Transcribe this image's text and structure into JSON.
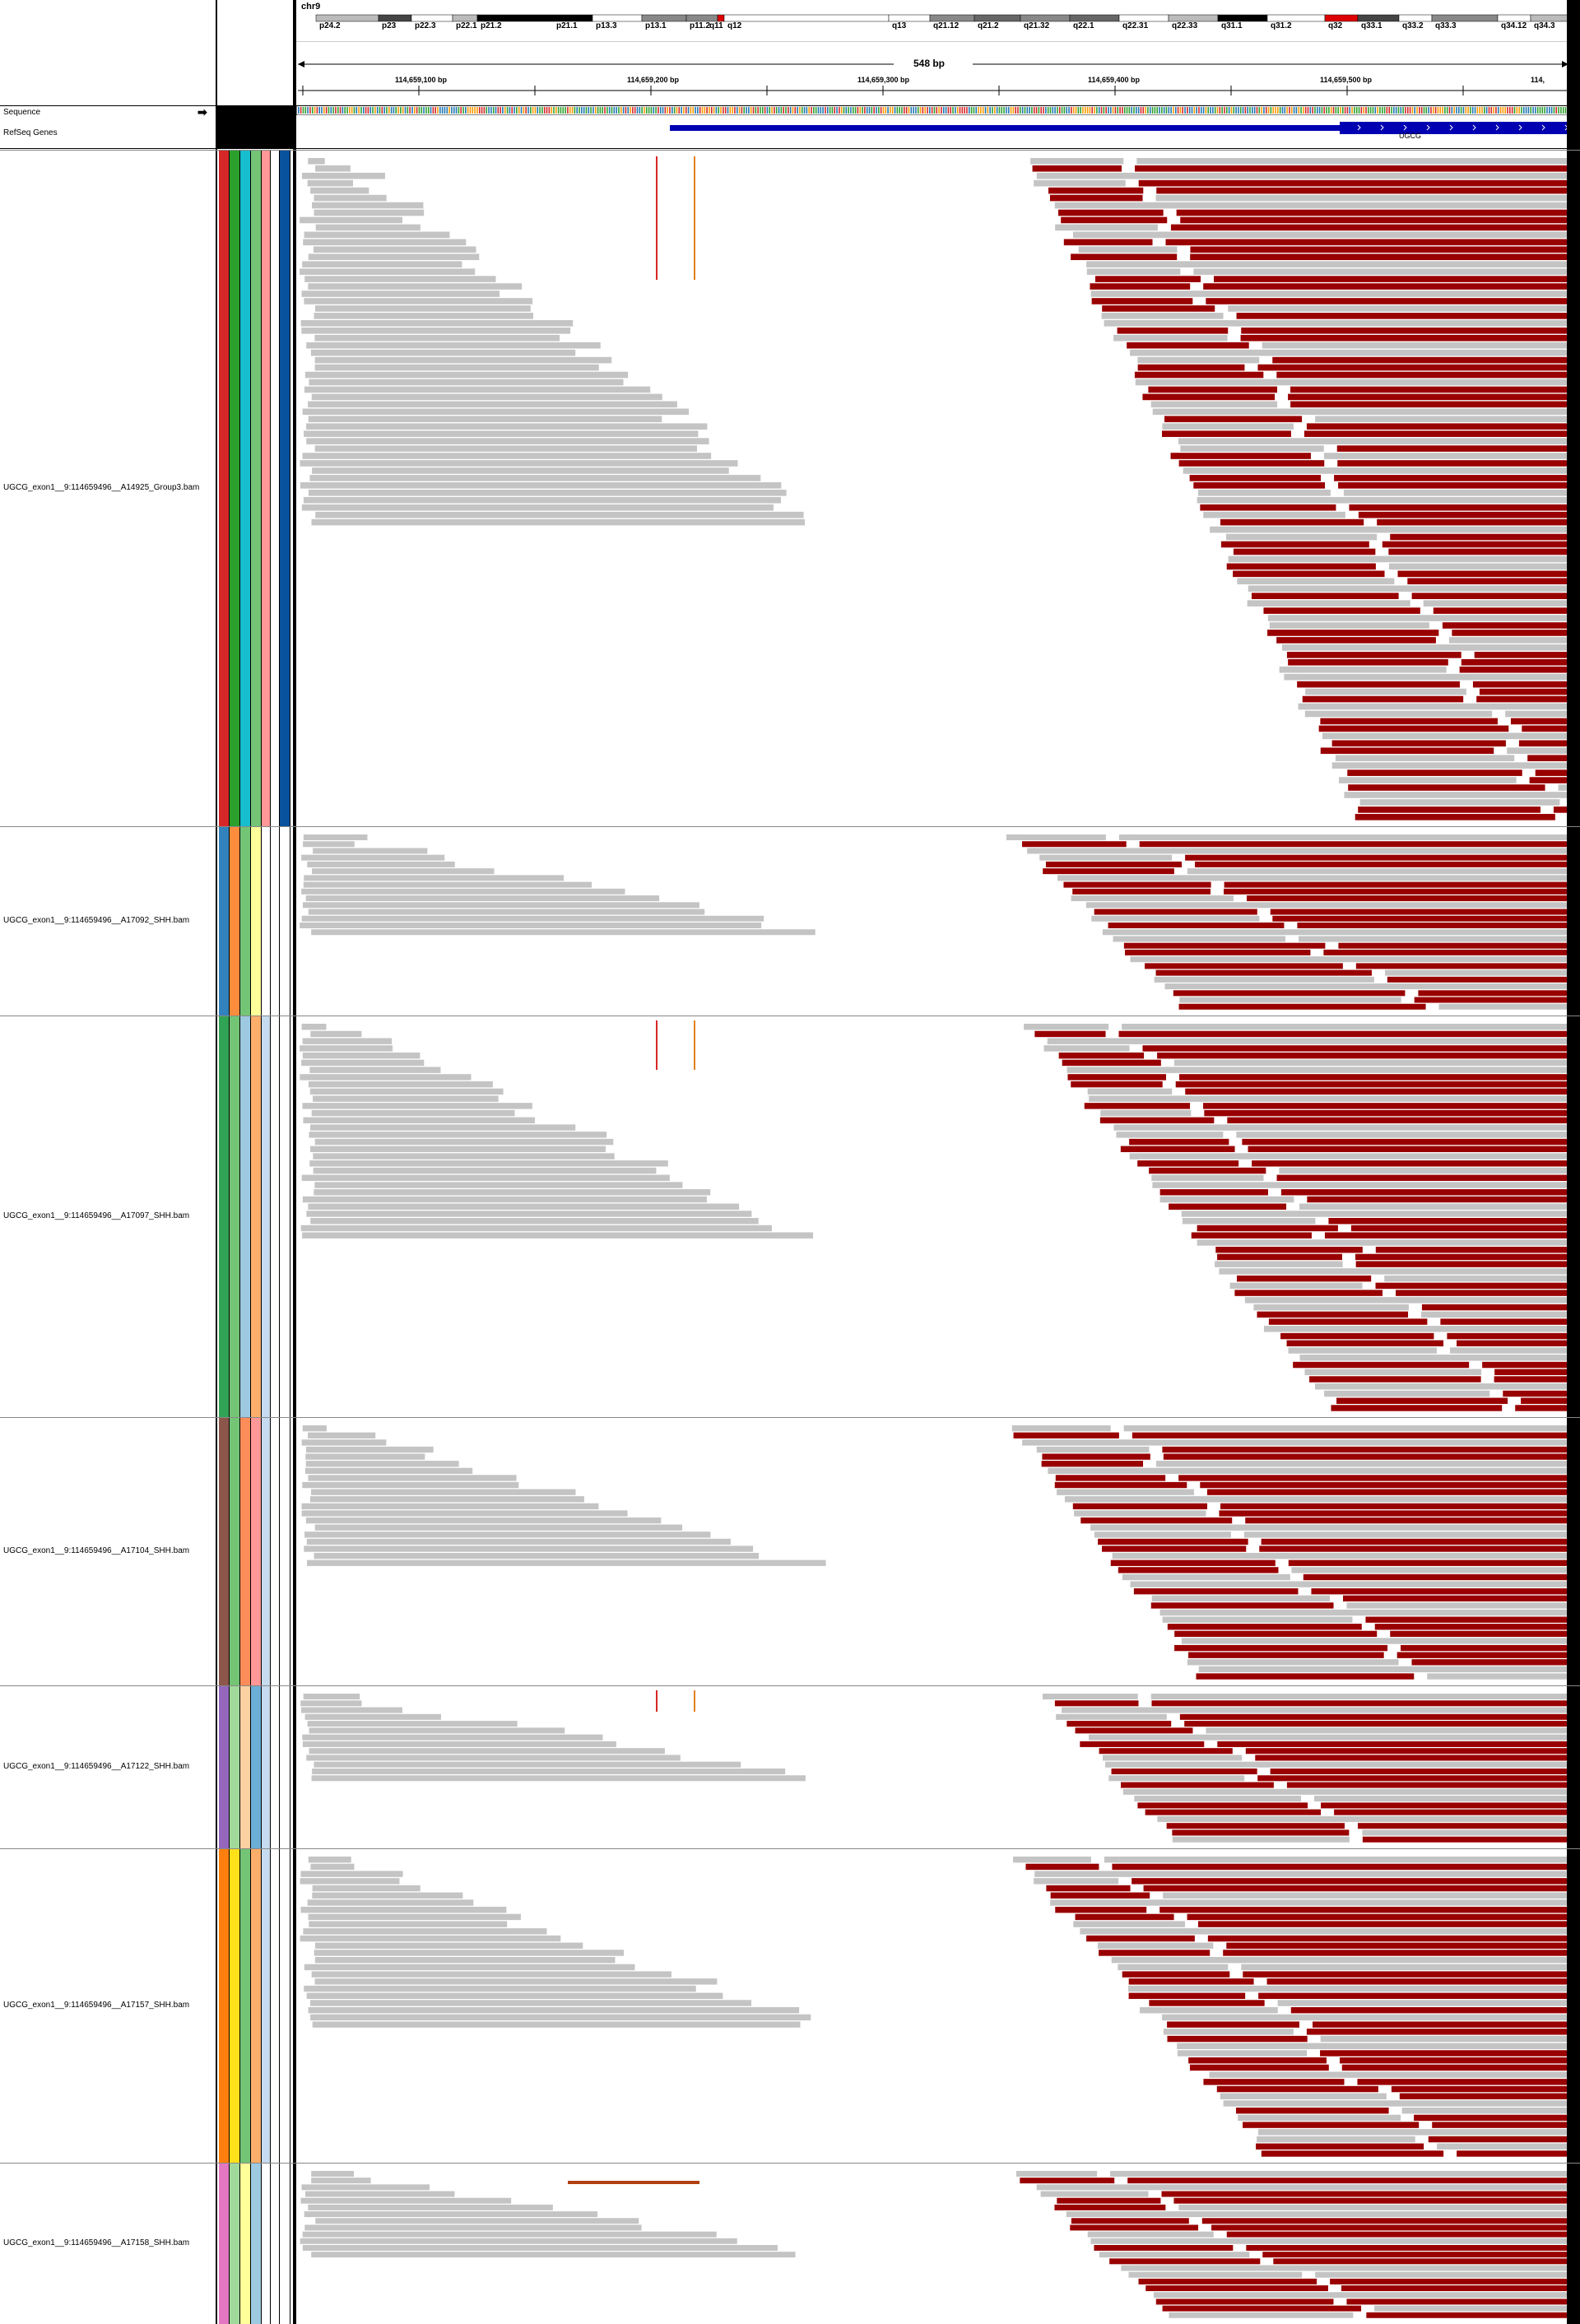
{
  "chromosome": {
    "name": "chr9",
    "bands": [
      "p24.2",
      "p23",
      "p22.3",
      "p22.1",
      "p21.2",
      "p21.1",
      "p13.3",
      "p13.1",
      "p11.2",
      "q11",
      "q12",
      "q13",
      "q21.12",
      "q21.2",
      "q21.32",
      "q22.1",
      "q22.31",
      "q22.33",
      "q31.1",
      "q31.2",
      "q32",
      "q33.1",
      "q33.2",
      "q33.3",
      "q34.12",
      "q34.3"
    ]
  },
  "ruler": {
    "span": "548 bp",
    "ticks": [
      "114,659,100 bp",
      "114,659,200 bp",
      "114,659,300 bp",
      "114,659,400 bp",
      "114,659,500 bp",
      "114,"
    ]
  },
  "tracks": {
    "sequence_label": "Sequence",
    "refseq_label": "RefSeq Genes",
    "gene_name": "UGCG"
  },
  "samples": [
    {
      "name": "UGCG_exon1__9:114659496__A14925_Group3.bam",
      "attr_colors": [
        "#d62728",
        "#2ca02c",
        "#17becf",
        "#74c476",
        "#ff9896",
        "#ffffff",
        "#08519c"
      ]
    },
    {
      "name": "UGCG_exon1__9:114659496__A17092_SHH.bam",
      "attr_colors": [
        "#3182bd",
        "#fd8d3c",
        "#74c476",
        "#ffff99",
        "#ffffff",
        "#ffffff",
        "#ffffff"
      ]
    },
    {
      "name": "UGCG_exon1__9:114659496__A17097_SHH.bam",
      "attr_colors": [
        "#31a354",
        "#74c476",
        "#9ecae1",
        "#fdae6b",
        "#c6dbef",
        "#ffffff",
        "#ffffff"
      ]
    },
    {
      "name": "UGCG_exon1__9:114659496__A17104_SHH.bam",
      "attr_colors": [
        "#8c564b",
        "#74c476",
        "#fc8d59",
        "#ff9896",
        "#c6dbef",
        "#ffffff",
        "#ffffff"
      ]
    },
    {
      "name": "UGCG_exon1__9:114659496__A17122_SHH.bam",
      "attr_colors": [
        "#9467bd",
        "#a1d99b",
        "#fdd0a2",
        "#6baed6",
        "#c6dbef",
        "#ffffff",
        "#ffffff"
      ]
    },
    {
      "name": "UGCG_exon1__9:114659496__A17157_SHH.bam",
      "attr_colors": [
        "#ff7f0e",
        "#ffe119",
        "#74c476",
        "#fdae6b",
        "#c6dbef",
        "#ffffff",
        "#ffffff"
      ]
    },
    {
      "name": "UGCG_exon1__9:114659496__A17158_SHH.bam",
      "attr_colors": [
        "#e377c2",
        "#a1d99b",
        "#ffff99",
        "#9ecae1",
        "#ffffff",
        "#ffffff",
        "#ffffff"
      ]
    }
  ],
  "colors": {
    "read_gray": "#c4c4c4",
    "read_red": "#990000",
    "gene_blue": "#0000b2"
  }
}
